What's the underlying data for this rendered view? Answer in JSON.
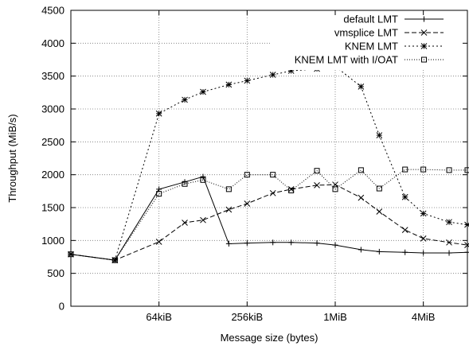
{
  "chart_data": {
    "type": "line",
    "title": "",
    "xlabel": "Message size (bytes)",
    "ylabel": "Throughput (MiB/s)",
    "x_scale": "log2",
    "x_unit": "KiB",
    "x": [
      16,
      32,
      64,
      96,
      128,
      192,
      256,
      384,
      512,
      768,
      1024,
      1536,
      2048,
      3072,
      4096,
      6144,
      8192
    ],
    "xticks": [
      {
        "value": 64,
        "label": "64kiB"
      },
      {
        "value": 256,
        "label": "256kiB"
      },
      {
        "value": 1024,
        "label": "1MiB"
      },
      {
        "value": 4096,
        "label": "4MiB"
      }
    ],
    "xlim": [
      16,
      8192
    ],
    "ylim": [
      0,
      4500
    ],
    "yticks": [
      0,
      500,
      1000,
      1500,
      2000,
      2500,
      3000,
      3500,
      4000,
      4500
    ],
    "grid": true,
    "legend_position": "top-right",
    "series": [
      {
        "name": "default LMT",
        "marker": "plus",
        "dash": "",
        "values": [
          790,
          700,
          1780,
          1890,
          1970,
          950,
          960,
          970,
          970,
          960,
          930,
          860,
          830,
          820,
          810,
          810,
          820
        ]
      },
      {
        "name": "vmsplice LMT",
        "marker": "cross",
        "dash": "6,3",
        "values": [
          790,
          700,
          980,
          1270,
          1310,
          1470,
          1560,
          1720,
          1780,
          1840,
          1850,
          1650,
          1440,
          1160,
          1030,
          970,
          930
        ]
      },
      {
        "name": "KNEM LMT",
        "marker": "star",
        "dash": "2,3",
        "values": [
          790,
          700,
          2930,
          3140,
          3260,
          3370,
          3430,
          3520,
          3580,
          3610,
          3650,
          3340,
          2600,
          1660,
          1410,
          1280,
          1240
        ]
      },
      {
        "name": "KNEM LMT with I/OAT",
        "marker": "square",
        "dash": "1,2",
        "values": [
          790,
          700,
          1710,
          1860,
          1920,
          1780,
          2000,
          2000,
          1760,
          2060,
          1780,
          2070,
          1790,
          2080,
          2080,
          2070,
          2070
        ]
      }
    ]
  }
}
